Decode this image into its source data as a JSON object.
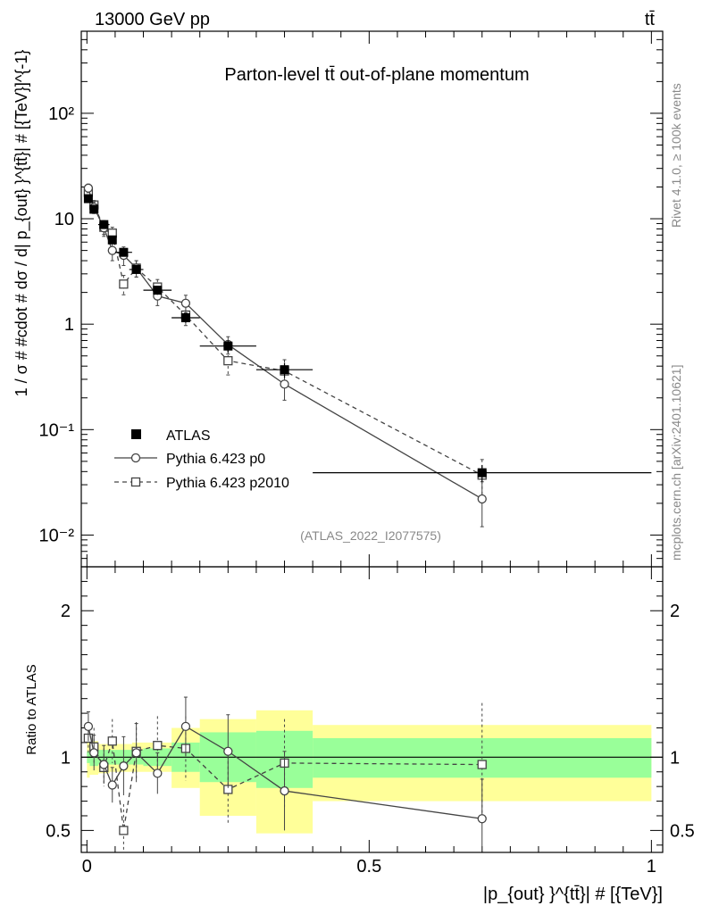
{
  "header": {
    "energy_label": "13000 GeV pp",
    "process_label": "tt̄"
  },
  "side_labels": {
    "rivet": "Rivet 4.1.0, ≥ 100k events",
    "mcplots": "mcplots.cern.ch [arXiv:2401.10621]"
  },
  "chart_data": [
    {
      "type": "line",
      "title": "Parton-level tt̄ out-of-plane momentum",
      "ylabel": "1 / σ # #cdot # dσ / d| p_{out} }^{tt̄}| # [{TeV}]^{-1}",
      "yscale": "log",
      "ylim": [
        0.005,
        600
      ],
      "xlim": [
        -0.01,
        1.02
      ],
      "watermark": "(ATLAS_2022_I2077575)",
      "legend_position": "lower-left",
      "y_ticks": [
        {
          "value": 0.01,
          "label": "10⁻²"
        },
        {
          "value": 0.1,
          "label": "10⁻¹"
        },
        {
          "value": 1,
          "label": "1"
        },
        {
          "value": 10,
          "label": "10"
        },
        {
          "value": 100,
          "label": "10²"
        }
      ],
      "series": [
        {
          "name": "ATLAS",
          "style": "filled-square",
          "x": [
            0.0025,
            0.0125,
            0.03,
            0.045,
            0.065,
            0.0875,
            0.125,
            0.175,
            0.25,
            0.35,
            0.7
          ],
          "values": [
            15.5,
            12.3,
            8.8,
            6.3,
            4.8,
            3.3,
            2.1,
            1.15,
            0.62,
            0.37,
            0.039
          ],
          "xerr": [
            0.0025,
            0.0075,
            0.01,
            0.005,
            0.015,
            0.0125,
            0.025,
            0.025,
            0.05,
            0.05,
            0.3
          ],
          "yerr": [
            1.2,
            1.0,
            0.7,
            0.5,
            0.4,
            0.3,
            0.2,
            0.12,
            0.08,
            0.06,
            0.007
          ]
        },
        {
          "name": "Pythia 6.423 p0",
          "style": "open-circle-solid",
          "x": [
            0.0025,
            0.0125,
            0.03,
            0.045,
            0.065,
            0.0875,
            0.125,
            0.175,
            0.25,
            0.35,
            0.7
          ],
          "values": [
            19.5,
            12.8,
            8.2,
            5.0,
            4.5,
            3.4,
            1.85,
            1.58,
            0.64,
            0.27,
            0.022
          ],
          "yerr": [
            1.8,
            1.6,
            1.4,
            1.0,
            0.9,
            0.6,
            0.35,
            0.3,
            0.12,
            0.08,
            0.01
          ]
        },
        {
          "name": "Pythia 6.423 p2010",
          "style": "open-square-dashed",
          "x": [
            0.0025,
            0.0125,
            0.03,
            0.045,
            0.065,
            0.0875,
            0.125,
            0.175,
            0.25,
            0.35,
            0.7
          ],
          "values": [
            17.8,
            13.5,
            8.3,
            7.3,
            2.4,
            3.4,
            2.25,
            1.22,
            0.45,
            0.36,
            0.037
          ],
          "yerr": [
            1.6,
            1.4,
            1.2,
            1.0,
            0.5,
            0.6,
            0.4,
            0.25,
            0.12,
            0.1,
            0.015
          ]
        }
      ]
    },
    {
      "type": "line",
      "ylabel": "Ratio to ATLAS",
      "xlabel": "|p_{out} }^{tt̄}| # [{TeV}]",
      "ylim": [
        0.35,
        2.3
      ],
      "xlim": [
        -0.01,
        1.02
      ],
      "reference_line": 1,
      "y_ticks": [
        {
          "value": 0.5,
          "label": "0.5"
        },
        {
          "value": 1,
          "label": "1"
        },
        {
          "value": 2,
          "label": "2"
        }
      ],
      "x_ticks": [
        {
          "value": 0,
          "label": "0"
        },
        {
          "value": 0.5,
          "label": "0.5"
        },
        {
          "value": 1,
          "label": "1"
        }
      ],
      "bands": [
        {
          "lo": 0,
          "hi": 0.005,
          "inner": [
            0.96,
            1.04
          ],
          "outer": [
            0.86,
            1.13
          ]
        },
        {
          "lo": 0.005,
          "hi": 0.02,
          "inner": [
            0.94,
            1.06
          ],
          "outer": [
            0.88,
            1.11
          ]
        },
        {
          "lo": 0.02,
          "hi": 0.04,
          "inner": [
            0.95,
            1.05
          ],
          "outer": [
            0.89,
            1.09
          ]
        },
        {
          "lo": 0.04,
          "hi": 0.05,
          "inner": [
            0.95,
            1.05
          ],
          "outer": [
            0.9,
            1.1
          ]
        },
        {
          "lo": 0.05,
          "hi": 0.08,
          "inner": [
            0.95,
            1.05
          ],
          "outer": [
            0.9,
            1.09
          ]
        },
        {
          "lo": 0.08,
          "hi": 0.1,
          "inner": [
            0.95,
            1.05
          ],
          "outer": [
            0.9,
            1.1
          ]
        },
        {
          "lo": 0.1,
          "hi": 0.15,
          "inner": [
            0.94,
            1.06
          ],
          "outer": [
            0.9,
            1.1
          ]
        },
        {
          "lo": 0.15,
          "hi": 0.2,
          "inner": [
            0.9,
            1.1
          ],
          "outer": [
            0.79,
            1.2
          ]
        },
        {
          "lo": 0.2,
          "hi": 0.3,
          "inner": [
            0.83,
            1.17
          ],
          "outer": [
            0.6,
            1.26
          ]
        },
        {
          "lo": 0.3,
          "hi": 0.4,
          "inner": [
            0.79,
            1.18
          ],
          "outer": [
            0.48,
            1.32
          ]
        },
        {
          "lo": 0.4,
          "hi": 1.0,
          "inner": [
            0.86,
            1.13
          ],
          "outer": [
            0.7,
            1.22
          ]
        }
      ],
      "series": [
        {
          "name": "Pythia 6.423 p0",
          "style": "open-circle-solid",
          "x": [
            0.0025,
            0.0125,
            0.03,
            0.045,
            0.065,
            0.0875,
            0.125,
            0.175,
            0.25,
            0.35,
            0.7
          ],
          "values": [
            1.21,
            1.03,
            0.95,
            0.81,
            0.94,
            1.03,
            0.89,
            1.21,
            1.04,
            0.77,
            0.58
          ],
          "yerr": [
            0.1,
            0.12,
            0.13,
            0.12,
            0.2,
            0.2,
            0.14,
            0.2,
            0.25,
            0.27,
            0.27
          ]
        },
        {
          "name": "Pythia 6.423 p2010",
          "style": "open-square-dashed",
          "x": [
            0.0025,
            0.0125,
            0.03,
            0.045,
            0.065,
            0.0875,
            0.125,
            0.175,
            0.25,
            0.35,
            0.7
          ],
          "values": [
            1.13,
            1.07,
            0.93,
            1.11,
            0.5,
            1.04,
            1.08,
            1.06,
            0.78,
            0.96,
            0.95
          ],
          "yerr": [
            0.1,
            0.13,
            0.13,
            0.15,
            0.18,
            0.2,
            0.2,
            0.22,
            0.23,
            0.3,
            0.42
          ]
        }
      ]
    }
  ]
}
